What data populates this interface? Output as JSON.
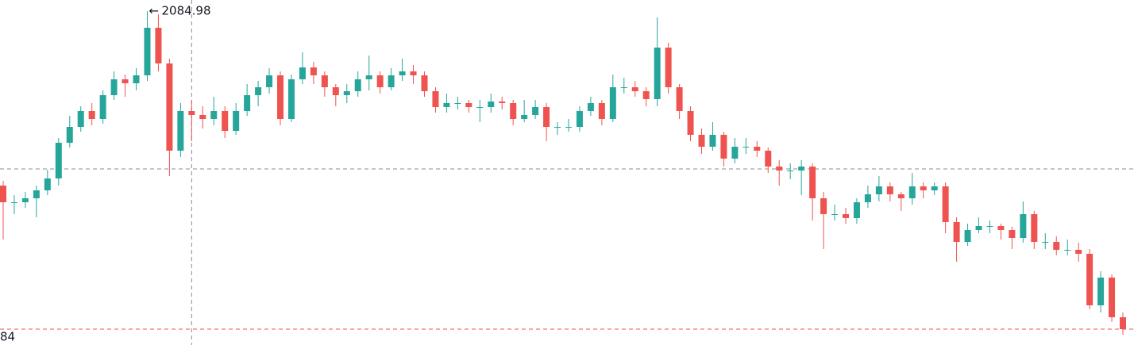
{
  "chart_data": {
    "type": "candlestick",
    "up_color": "#26a69a",
    "down_color": "#ef5350",
    "ylim": [
      1979.75,
      2088.5
    ],
    "max_label": "2084.98",
    "price_label": "84",
    "crosshair": {
      "price": 2035.25,
      "index": 17
    },
    "candles": [
      [
        2030,
        2031.5,
        2013,
        2024.75
      ],
      [
        2024.75,
        2027,
        2021,
        2024.75
      ],
      [
        2024.75,
        2028,
        2023,
        2026
      ],
      [
        2026,
        2030,
        2020,
        2028.5
      ],
      [
        2028.5,
        2035,
        2027,
        2032.25
      ],
      [
        2032.25,
        2045,
        2030,
        2043.5
      ],
      [
        2043.5,
        2052,
        2042,
        2048.5
      ],
      [
        2048.5,
        2055,
        2047,
        2053.5
      ],
      [
        2053.5,
        2056,
        2049,
        2051
      ],
      [
        2051,
        2060,
        2049.5,
        2058.5
      ],
      [
        2058.5,
        2066,
        2057,
        2063.5
      ],
      [
        2063.5,
        2065,
        2058,
        2062.25
      ],
      [
        2062.25,
        2067,
        2060,
        2064.75
      ],
      [
        2064.75,
        2084.98,
        2063,
        2079.75
      ],
      [
        2079.75,
        2084,
        2066,
        2068.5
      ],
      [
        2068.5,
        2070,
        2033,
        2041
      ],
      [
        2041,
        2056,
        2039,
        2053.5
      ],
      [
        2053.5,
        2057,
        2044,
        2052.25
      ],
      [
        2052.25,
        2055,
        2048,
        2051
      ],
      [
        2051,
        2058,
        2049,
        2053.5
      ],
      [
        2053.5,
        2055,
        2045,
        2047.25
      ],
      [
        2047.25,
        2056,
        2046,
        2053.5
      ],
      [
        2053.5,
        2062,
        2052,
        2058.5
      ],
      [
        2058.5,
        2063,
        2055,
        2061
      ],
      [
        2061,
        2067,
        2059,
        2064.75
      ],
      [
        2064.75,
        2066,
        2049,
        2051
      ],
      [
        2051,
        2065,
        2050,
        2063.5
      ],
      [
        2063.5,
        2072,
        2062,
        2067.25
      ],
      [
        2067.25,
        2069,
        2062,
        2064.75
      ],
      [
        2064.75,
        2066,
        2058,
        2061
      ],
      [
        2061,
        2062,
        2055,
        2058.5
      ],
      [
        2058.5,
        2062,
        2056,
        2059.75
      ],
      [
        2059.75,
        2066,
        2058,
        2063.5
      ],
      [
        2063.5,
        2071,
        2060,
        2064.75
      ],
      [
        2064.75,
        2066,
        2059,
        2061
      ],
      [
        2061,
        2067,
        2060,
        2064.75
      ],
      [
        2064.75,
        2070,
        2063,
        2066
      ],
      [
        2066,
        2068,
        2062,
        2064.75
      ],
      [
        2064.75,
        2066,
        2058,
        2059.75
      ],
      [
        2059.75,
        2061,
        2053,
        2054.75
      ],
      [
        2054.75,
        2059,
        2053,
        2056
      ],
      [
        2056,
        2058,
        2054,
        2056
      ],
      [
        2056,
        2057,
        2053,
        2054.75
      ],
      [
        2054.75,
        2057,
        2050,
        2054.75
      ],
      [
        2054.75,
        2059,
        2053,
        2056.5
      ],
      [
        2056.5,
        2058,
        2054,
        2056
      ],
      [
        2056,
        2057,
        2049,
        2051
      ],
      [
        2051,
        2057,
        2050,
        2052.25
      ],
      [
        2052.25,
        2057,
        2051,
        2054.75
      ],
      [
        2054.75,
        2056,
        2044,
        2048.5
      ],
      [
        2048.5,
        2050,
        2046,
        2048.5
      ],
      [
        2048.5,
        2051,
        2047,
        2048.5
      ],
      [
        2048.5,
        2055,
        2047,
        2053.5
      ],
      [
        2053.5,
        2058,
        2052,
        2056
      ],
      [
        2056,
        2057,
        2049,
        2051
      ],
      [
        2051,
        2065,
        2050,
        2061
      ],
      [
        2061,
        2064,
        2059,
        2061
      ],
      [
        2061,
        2063,
        2058,
        2059.75
      ],
      [
        2059.75,
        2061,
        2055,
        2057.25
      ],
      [
        2057.25,
        2083,
        2055,
        2073.5
      ],
      [
        2073.5,
        2075,
        2059,
        2061
      ],
      [
        2061,
        2062,
        2051,
        2053.5
      ],
      [
        2053.5,
        2055,
        2044,
        2046
      ],
      [
        2046,
        2048,
        2040,
        2042.25
      ],
      [
        2042.25,
        2050,
        2041,
        2046
      ],
      [
        2046,
        2047,
        2036,
        2038.5
      ],
      [
        2038.5,
        2045,
        2037,
        2042.25
      ],
      [
        2042.25,
        2045,
        2040,
        2042.25
      ],
      [
        2042.25,
        2044,
        2039,
        2041
      ],
      [
        2041,
        2042,
        2034,
        2036
      ],
      [
        2036,
        2038,
        2030,
        2034.75
      ],
      [
        2034.75,
        2037,
        2032,
        2034.75
      ],
      [
        2034.75,
        2038,
        2027,
        2036
      ],
      [
        2036,
        2037,
        2019,
        2026
      ],
      [
        2026,
        2028,
        2010,
        2021
      ],
      [
        2021,
        2024,
        2019,
        2021
      ],
      [
        2021,
        2023,
        2018,
        2019.75
      ],
      [
        2019.75,
        2026,
        2018,
        2024.75
      ],
      [
        2024.75,
        2030,
        2023,
        2027.25
      ],
      [
        2027.25,
        2033,
        2025,
        2029.75
      ],
      [
        2029.75,
        2031,
        2025,
        2027.25
      ],
      [
        2027.25,
        2028,
        2022,
        2026
      ],
      [
        2026,
        2034,
        2024,
        2029.75
      ],
      [
        2029.75,
        2031,
        2026,
        2028.5
      ],
      [
        2028.5,
        2031,
        2027,
        2029.75
      ],
      [
        2029.75,
        2031,
        2015,
        2018.5
      ],
      [
        2018.5,
        2020,
        2006,
        2012.25
      ],
      [
        2012.25,
        2018,
        2011,
        2016
      ],
      [
        2016,
        2020,
        2015,
        2017.25
      ],
      [
        2017.25,
        2019,
        2015,
        2017.25
      ],
      [
        2017.25,
        2018,
        2013,
        2016
      ],
      [
        2016,
        2017,
        2010,
        2013.5
      ],
      [
        2013.5,
        2025,
        2012,
        2021
      ],
      [
        2021,
        2022,
        2010,
        2012.25
      ],
      [
        2012.25,
        2015,
        2010,
        2012.25
      ],
      [
        2012.25,
        2014,
        2008,
        2009.75
      ],
      [
        2009.75,
        2013,
        2008,
        2009.75
      ],
      [
        2009.75,
        2012,
        2006,
        2008.5
      ],
      [
        2008.5,
        2010,
        1991,
        1992.25
      ],
      [
        1992.25,
        2003,
        1990,
        2001
      ],
      [
        2001,
        2002,
        1987,
        1988.5
      ],
      [
        1988.5,
        1990,
        1983,
        1984.75
      ]
    ]
  }
}
